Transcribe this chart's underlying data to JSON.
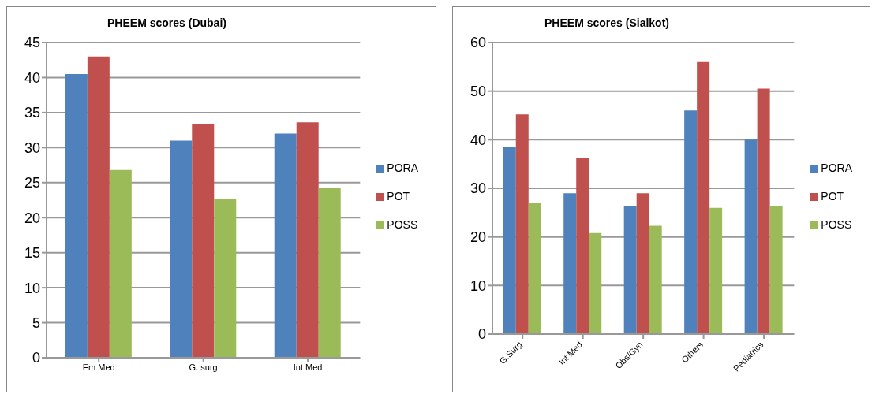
{
  "chart_data": [
    {
      "type": "bar",
      "title": "PHEEM scores (Dubai)",
      "categories": [
        "Em Med",
        "G. surg",
        "Int Med"
      ],
      "series": [
        {
          "name": "PORA",
          "color": "#4f81bd",
          "values": [
            40.5,
            31,
            32
          ]
        },
        {
          "name": "POT",
          "color": "#c0504d",
          "values": [
            43,
            33.3,
            33.6
          ]
        },
        {
          "name": "POSS",
          "color": "#9bbb59",
          "values": [
            26.8,
            22.7,
            24.3
          ]
        }
      ],
      "ylim": [
        0,
        45
      ],
      "yticks": [
        0,
        5,
        10,
        15,
        20,
        25,
        30,
        35,
        40,
        45
      ],
      "grid": "y",
      "legend": "right"
    },
    {
      "type": "bar",
      "title": "PHEEM scores (Sialkot)",
      "categories": [
        "G.Surg",
        "Int Med",
        "Obs/Gyn",
        "Others",
        "Pediatrics"
      ],
      "series": [
        {
          "name": "PORA",
          "color": "#4f81bd",
          "values": [
            38.6,
            29,
            26.4,
            46,
            40
          ]
        },
        {
          "name": "POT",
          "color": "#c0504d",
          "values": [
            45.2,
            36.3,
            29,
            56,
            50.5
          ]
        },
        {
          "name": "POSS",
          "color": "#9bbb59",
          "values": [
            27,
            20.8,
            22.3,
            26,
            26.4
          ]
        }
      ],
      "ylim": [
        0,
        60
      ],
      "yticks": [
        0,
        10,
        20,
        30,
        40,
        50,
        60
      ],
      "grid": "y",
      "legend": "right"
    }
  ]
}
